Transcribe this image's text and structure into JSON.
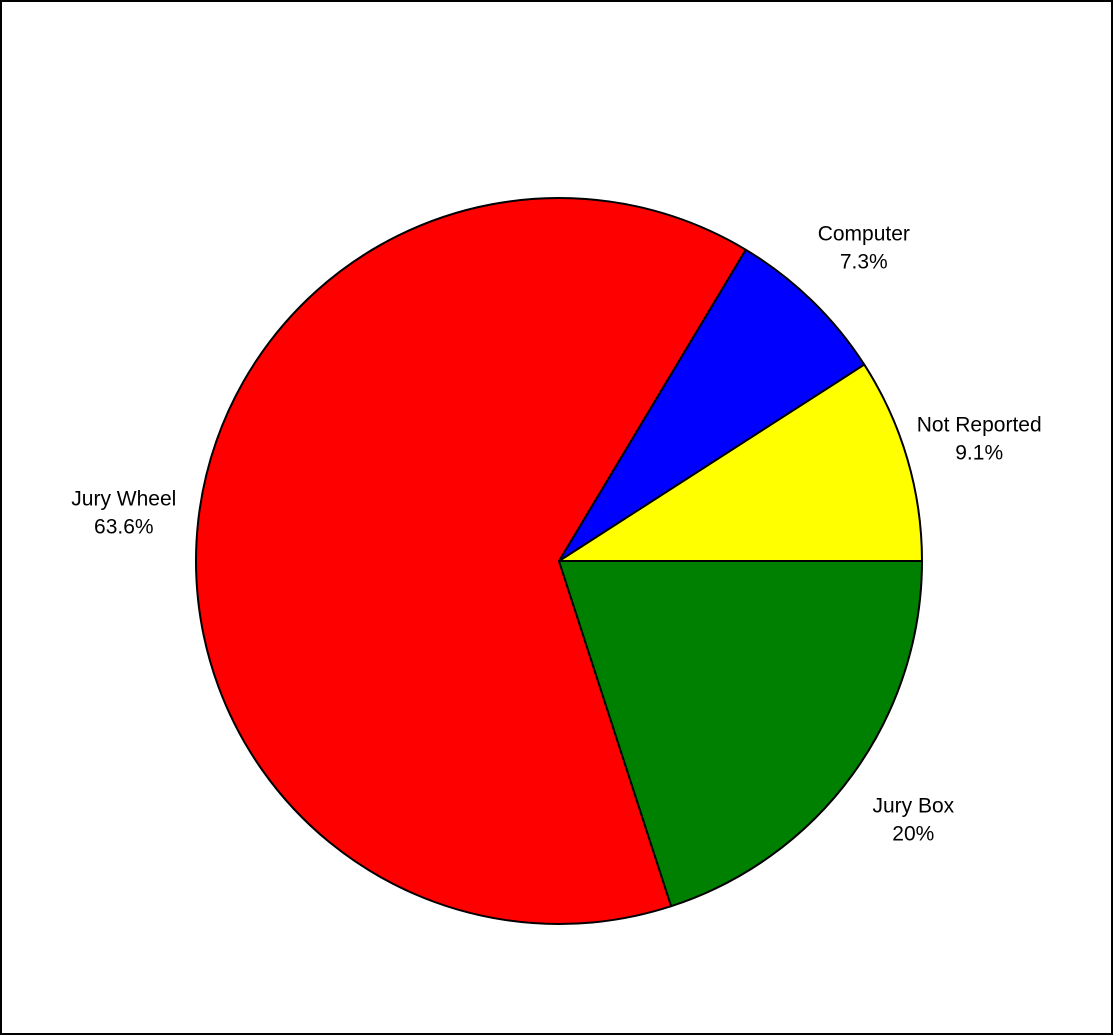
{
  "chart_data": {
    "type": "pie",
    "title": "",
    "start_angle_deg": 0,
    "direction": "counterclockwise",
    "legend": "none",
    "slices": [
      {
        "label": "Not Reported",
        "value_label": "9.1%",
        "value": 9.1,
        "color": "#FFFF00"
      },
      {
        "label": "Computer",
        "value_label": "7.3%",
        "value": 7.3,
        "color": "#0000FF"
      },
      {
        "label": "Jury Wheel",
        "value_label": "63.6%",
        "value": 63.6,
        "color": "#FF0000"
      },
      {
        "label": "Jury Box",
        "value_label": "20%",
        "value": 20,
        "color": "#008000"
      }
    ]
  }
}
